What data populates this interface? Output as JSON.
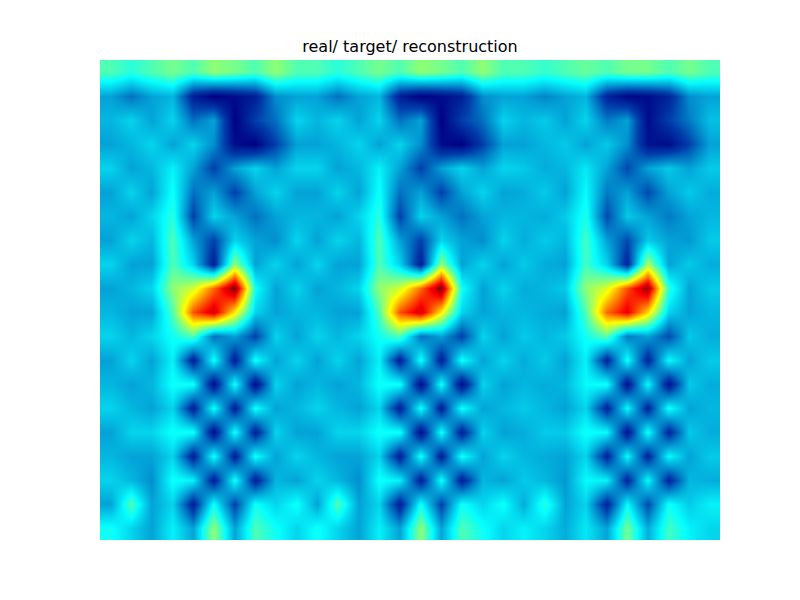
{
  "chart_data": {
    "type": "heatmap",
    "title": "real/ target/ reconstruction",
    "color": "Jet",
    "tick_labels": false,
    "z": [
      [
        0.45,
        0.42,
        0.45,
        0.48,
        0.45,
        0.5,
        0.48,
        0.45,
        0.5,
        0.45,
        0.45,
        0.42,
        0.45,
        0.48,
        0.45,
        0.5,
        0.48,
        0.45,
        0.5,
        0.45,
        0.45,
        0.43,
        0.45,
        0.47,
        0.45,
        0.48,
        0.48,
        0.45,
        0.48,
        0.45
      ],
      [
        0.3,
        0.25,
        0.3,
        0.32,
        0.15,
        0.1,
        0.12,
        0.15,
        0.28,
        0.3,
        0.3,
        0.25,
        0.3,
        0.32,
        0.15,
        0.1,
        0.12,
        0.15,
        0.28,
        0.3,
        0.3,
        0.27,
        0.3,
        0.32,
        0.16,
        0.11,
        0.12,
        0.16,
        0.28,
        0.3
      ],
      [
        0.32,
        0.35,
        0.3,
        0.35,
        0.25,
        0.3,
        0.1,
        0.2,
        0.25,
        0.35,
        0.32,
        0.35,
        0.3,
        0.35,
        0.25,
        0.3,
        0.1,
        0.2,
        0.25,
        0.35,
        0.32,
        0.34,
        0.3,
        0.35,
        0.26,
        0.3,
        0.12,
        0.2,
        0.26,
        0.33
      ],
      [
        0.3,
        0.32,
        0.35,
        0.3,
        0.35,
        0.28,
        0.12,
        0.1,
        0.2,
        0.3,
        0.3,
        0.32,
        0.35,
        0.3,
        0.35,
        0.28,
        0.12,
        0.1,
        0.2,
        0.3,
        0.3,
        0.32,
        0.34,
        0.3,
        0.34,
        0.28,
        0.13,
        0.12,
        0.2,
        0.3
      ],
      [
        0.35,
        0.3,
        0.32,
        0.38,
        0.3,
        0.2,
        0.3,
        0.35,
        0.3,
        0.35,
        0.35,
        0.3,
        0.32,
        0.38,
        0.3,
        0.2,
        0.3,
        0.35,
        0.3,
        0.35,
        0.34,
        0.31,
        0.32,
        0.37,
        0.3,
        0.21,
        0.3,
        0.34,
        0.3,
        0.34
      ],
      [
        0.3,
        0.35,
        0.3,
        0.4,
        0.25,
        0.3,
        0.2,
        0.3,
        0.35,
        0.3,
        0.3,
        0.35,
        0.3,
        0.4,
        0.25,
        0.3,
        0.2,
        0.3,
        0.35,
        0.3,
        0.31,
        0.34,
        0.3,
        0.39,
        0.26,
        0.3,
        0.21,
        0.3,
        0.34,
        0.31
      ],
      [
        0.32,
        0.3,
        0.35,
        0.42,
        0.2,
        0.35,
        0.3,
        0.25,
        0.3,
        0.32,
        0.32,
        0.3,
        0.35,
        0.42,
        0.2,
        0.35,
        0.3,
        0.25,
        0.3,
        0.32,
        0.32,
        0.31,
        0.34,
        0.41,
        0.21,
        0.34,
        0.3,
        0.26,
        0.3,
        0.32
      ],
      [
        0.3,
        0.35,
        0.32,
        0.45,
        0.3,
        0.2,
        0.35,
        0.3,
        0.28,
        0.35,
        0.3,
        0.35,
        0.32,
        0.45,
        0.3,
        0.2,
        0.35,
        0.3,
        0.28,
        0.35,
        0.31,
        0.34,
        0.32,
        0.44,
        0.3,
        0.21,
        0.34,
        0.3,
        0.29,
        0.34
      ],
      [
        0.35,
        0.3,
        0.3,
        0.45,
        0.35,
        0.15,
        0.5,
        0.3,
        0.35,
        0.3,
        0.35,
        0.3,
        0.3,
        0.45,
        0.35,
        0.15,
        0.5,
        0.3,
        0.35,
        0.3,
        0.34,
        0.31,
        0.3,
        0.44,
        0.35,
        0.16,
        0.52,
        0.3,
        0.34,
        0.31
      ],
      [
        0.3,
        0.32,
        0.35,
        0.5,
        0.55,
        0.7,
        0.88,
        0.4,
        0.3,
        0.35,
        0.3,
        0.32,
        0.35,
        0.5,
        0.55,
        0.7,
        0.88,
        0.4,
        0.3,
        0.35,
        0.31,
        0.32,
        0.34,
        0.5,
        0.56,
        0.72,
        0.86,
        0.42,
        0.3,
        0.34
      ],
      [
        0.32,
        0.3,
        0.3,
        0.45,
        0.72,
        0.82,
        0.6,
        0.35,
        0.3,
        0.32,
        0.32,
        0.3,
        0.3,
        0.45,
        0.72,
        0.82,
        0.6,
        0.35,
        0.3,
        0.32,
        0.32,
        0.31,
        0.3,
        0.45,
        0.7,
        0.8,
        0.62,
        0.35,
        0.3,
        0.32
      ],
      [
        0.35,
        0.32,
        0.35,
        0.4,
        0.45,
        0.25,
        0.3,
        0.2,
        0.35,
        0.3,
        0.35,
        0.32,
        0.35,
        0.4,
        0.45,
        0.25,
        0.3,
        0.2,
        0.35,
        0.3,
        0.34,
        0.32,
        0.34,
        0.4,
        0.46,
        0.26,
        0.3,
        0.21,
        0.34,
        0.31
      ],
      [
        0.3,
        0.35,
        0.3,
        0.38,
        0.15,
        0.4,
        0.15,
        0.4,
        0.3,
        0.35,
        0.3,
        0.35,
        0.3,
        0.38,
        0.15,
        0.4,
        0.15,
        0.4,
        0.3,
        0.35,
        0.31,
        0.34,
        0.3,
        0.38,
        0.16,
        0.4,
        0.16,
        0.39,
        0.3,
        0.34
      ],
      [
        0.32,
        0.3,
        0.32,
        0.4,
        0.4,
        0.12,
        0.4,
        0.12,
        0.35,
        0.3,
        0.32,
        0.3,
        0.32,
        0.4,
        0.4,
        0.12,
        0.4,
        0.12,
        0.35,
        0.3,
        0.32,
        0.31,
        0.32,
        0.39,
        0.4,
        0.13,
        0.39,
        0.13,
        0.34,
        0.31
      ],
      [
        0.35,
        0.32,
        0.3,
        0.35,
        0.15,
        0.4,
        0.15,
        0.4,
        0.3,
        0.32,
        0.35,
        0.32,
        0.3,
        0.35,
        0.15,
        0.4,
        0.15,
        0.4,
        0.3,
        0.32,
        0.34,
        0.32,
        0.3,
        0.35,
        0.16,
        0.39,
        0.16,
        0.4,
        0.3,
        0.32
      ],
      [
        0.3,
        0.35,
        0.35,
        0.4,
        0.4,
        0.12,
        0.4,
        0.15,
        0.35,
        0.3,
        0.3,
        0.35,
        0.35,
        0.4,
        0.4,
        0.12,
        0.4,
        0.15,
        0.35,
        0.3,
        0.31,
        0.34,
        0.34,
        0.4,
        0.39,
        0.13,
        0.4,
        0.16,
        0.34,
        0.31
      ],
      [
        0.32,
        0.3,
        0.3,
        0.35,
        0.15,
        0.4,
        0.15,
        0.4,
        0.3,
        0.35,
        0.32,
        0.3,
        0.3,
        0.35,
        0.15,
        0.4,
        0.15,
        0.4,
        0.3,
        0.35,
        0.32,
        0.31,
        0.3,
        0.35,
        0.16,
        0.39,
        0.16,
        0.39,
        0.3,
        0.34
      ],
      [
        0.35,
        0.32,
        0.28,
        0.4,
        0.38,
        0.15,
        0.4,
        0.15,
        0.32,
        0.3,
        0.35,
        0.32,
        0.28,
        0.4,
        0.38,
        0.15,
        0.4,
        0.15,
        0.32,
        0.3,
        0.34,
        0.32,
        0.29,
        0.39,
        0.38,
        0.16,
        0.39,
        0.16,
        0.32,
        0.31
      ],
      [
        0.3,
        0.45,
        0.3,
        0.35,
        0.15,
        0.4,
        0.2,
        0.4,
        0.35,
        0.4,
        0.3,
        0.45,
        0.3,
        0.35,
        0.15,
        0.4,
        0.2,
        0.4,
        0.35,
        0.4,
        0.31,
        0.42,
        0.3,
        0.35,
        0.16,
        0.39,
        0.21,
        0.4,
        0.34,
        0.38
      ],
      [
        0.4,
        0.35,
        0.3,
        0.38,
        0.3,
        0.5,
        0.3,
        0.45,
        0.4,
        0.35,
        0.4,
        0.35,
        0.3,
        0.38,
        0.3,
        0.5,
        0.3,
        0.45,
        0.4,
        0.35,
        0.38,
        0.35,
        0.31,
        0.37,
        0.3,
        0.48,
        0.31,
        0.44,
        0.38,
        0.35
      ]
    ]
  }
}
